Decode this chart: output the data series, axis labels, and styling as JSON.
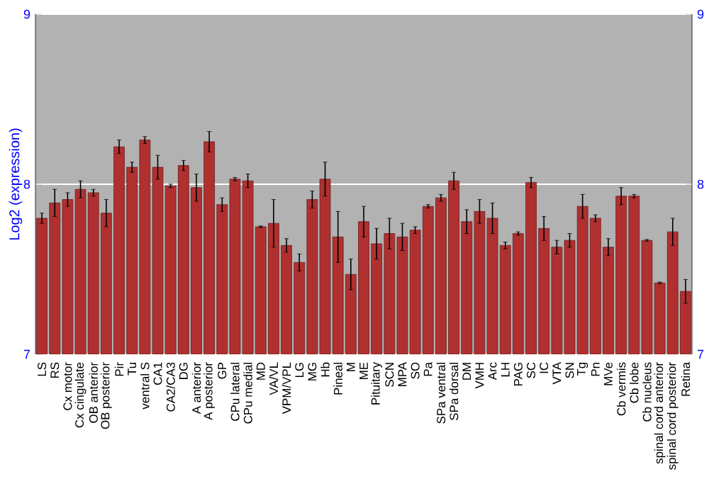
{
  "chart_data": {
    "type": "bar",
    "ylabel": "Log2 (expression)",
    "categories": [
      "LS",
      "RS",
      "Cx motor",
      "Cx cingulate",
      "OB anterior",
      "OB posterior",
      "Pir",
      "Tu",
      "ventral S",
      "CA1",
      "CA2/CA3",
      "DG",
      "A anterior",
      "A posterior",
      "GP",
      "CPu lateral",
      "CPu medial",
      "MD",
      "VA/VL",
      "VPM/VPL",
      "LG",
      "MG",
      "Hb",
      "Pineal",
      "M",
      "ME",
      "Pituitary",
      "SCN",
      "MPA",
      "SO",
      "Pa",
      "SPa ventral",
      "SPa dorsal",
      "DM",
      "VMH",
      "Arc",
      "LH",
      "PAG",
      "SC",
      "IC",
      "VTA",
      "SN",
      "Tg",
      "Pn",
      "MVe",
      "Cb vermis",
      "Cb lobe",
      "Cb nucleus",
      "spinal cord anterior",
      "spinal cord posterior",
      "Retina"
    ],
    "values": [
      7.8,
      7.89,
      7.91,
      7.97,
      7.95,
      7.83,
      8.22,
      8.1,
      8.26,
      8.1,
      7.99,
      8.11,
      7.98,
      8.25,
      7.88,
      8.03,
      8.02,
      7.75,
      7.77,
      7.64,
      7.54,
      7.91,
      8.03,
      7.69,
      7.47,
      7.78,
      7.65,
      7.71,
      7.69,
      7.73,
      7.87,
      7.92,
      8.02,
      7.78,
      7.84,
      7.8,
      7.64,
      7.71,
      8.01,
      7.74,
      7.63,
      7.67,
      7.87,
      7.8,
      7.63,
      7.93,
      7.93,
      7.67,
      7.42,
      7.72,
      7.37
    ],
    "errors": [
      0.03,
      0.08,
      0.04,
      0.05,
      0.02,
      0.08,
      0.04,
      0.03,
      0.02,
      0.07,
      0.01,
      0.03,
      0.08,
      0.06,
      0.04,
      0.01,
      0.04,
      0.005,
      0.14,
      0.04,
      0.05,
      0.05,
      0.1,
      0.15,
      0.09,
      0.09,
      0.09,
      0.09,
      0.08,
      0.02,
      0.01,
      0.02,
      0.05,
      0.07,
      0.07,
      0.09,
      0.02,
      0.01,
      0.03,
      0.07,
      0.04,
      0.04,
      0.07,
      0.02,
      0.05,
      0.05,
      0.01,
      0.005,
      0.005,
      0.08,
      0.07
    ],
    "color": "#b03030",
    "ylim": [
      7,
      9
    ],
    "yticks": [
      7,
      8,
      9
    ],
    "y2lim": [
      7,
      9
    ],
    "y2ticks": [
      7,
      8,
      9
    ],
    "grid": "y"
  }
}
